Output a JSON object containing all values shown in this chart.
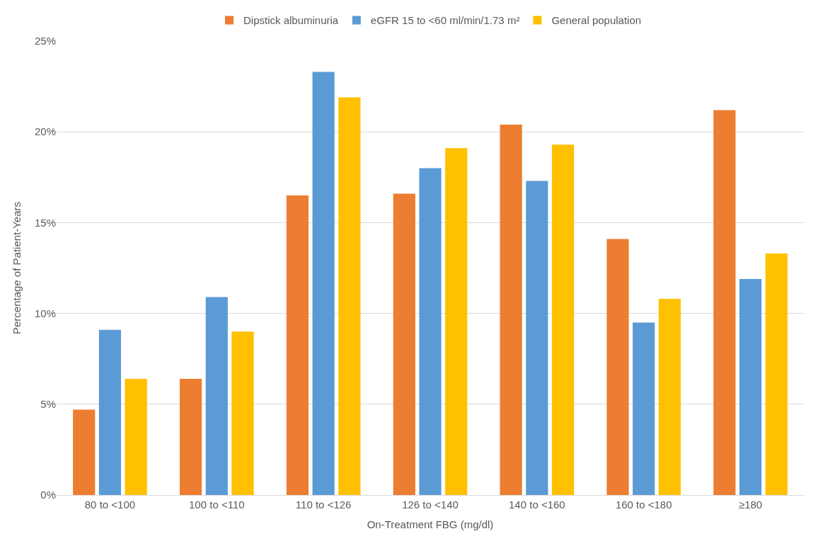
{
  "chart_data": {
    "type": "bar",
    "xlabel": "On-Treatment FBG (mg/dl)",
    "ylabel": "Percentage of Patient-Years",
    "categories": [
      "80 to <100",
      "100 to <110",
      "110 to <126",
      "126 to <140",
      "140 to <160",
      "160 to <180",
      "≥180"
    ],
    "series": [
      {
        "name": "Dipstick albuminuria",
        "color": "#ed7d31",
        "values": [
          4.7,
          6.4,
          16.5,
          16.6,
          20.4,
          14.1,
          21.2
        ]
      },
      {
        "name": "eGFR 15 to <60 ml/min/1.73 m²",
        "color": "#5b9bd5",
        "values": [
          9.1,
          10.9,
          23.3,
          18.0,
          17.3,
          9.5,
          11.9
        ]
      },
      {
        "name": "General population",
        "color": "#ffc000",
        "values": [
          6.4,
          9.0,
          21.9,
          19.1,
          19.3,
          10.8,
          13.3
        ]
      }
    ],
    "ylim": [
      0,
      25
    ],
    "yticks": [
      {
        "value": 0,
        "label": "0%"
      },
      {
        "value": 5,
        "label": "5%"
      },
      {
        "value": 10,
        "label": "10%"
      },
      {
        "value": 15,
        "label": "15%"
      },
      {
        "value": 20,
        "label": "20%"
      },
      {
        "value": 25,
        "label": "25%"
      }
    ],
    "grid": "y",
    "legend": "top"
  }
}
